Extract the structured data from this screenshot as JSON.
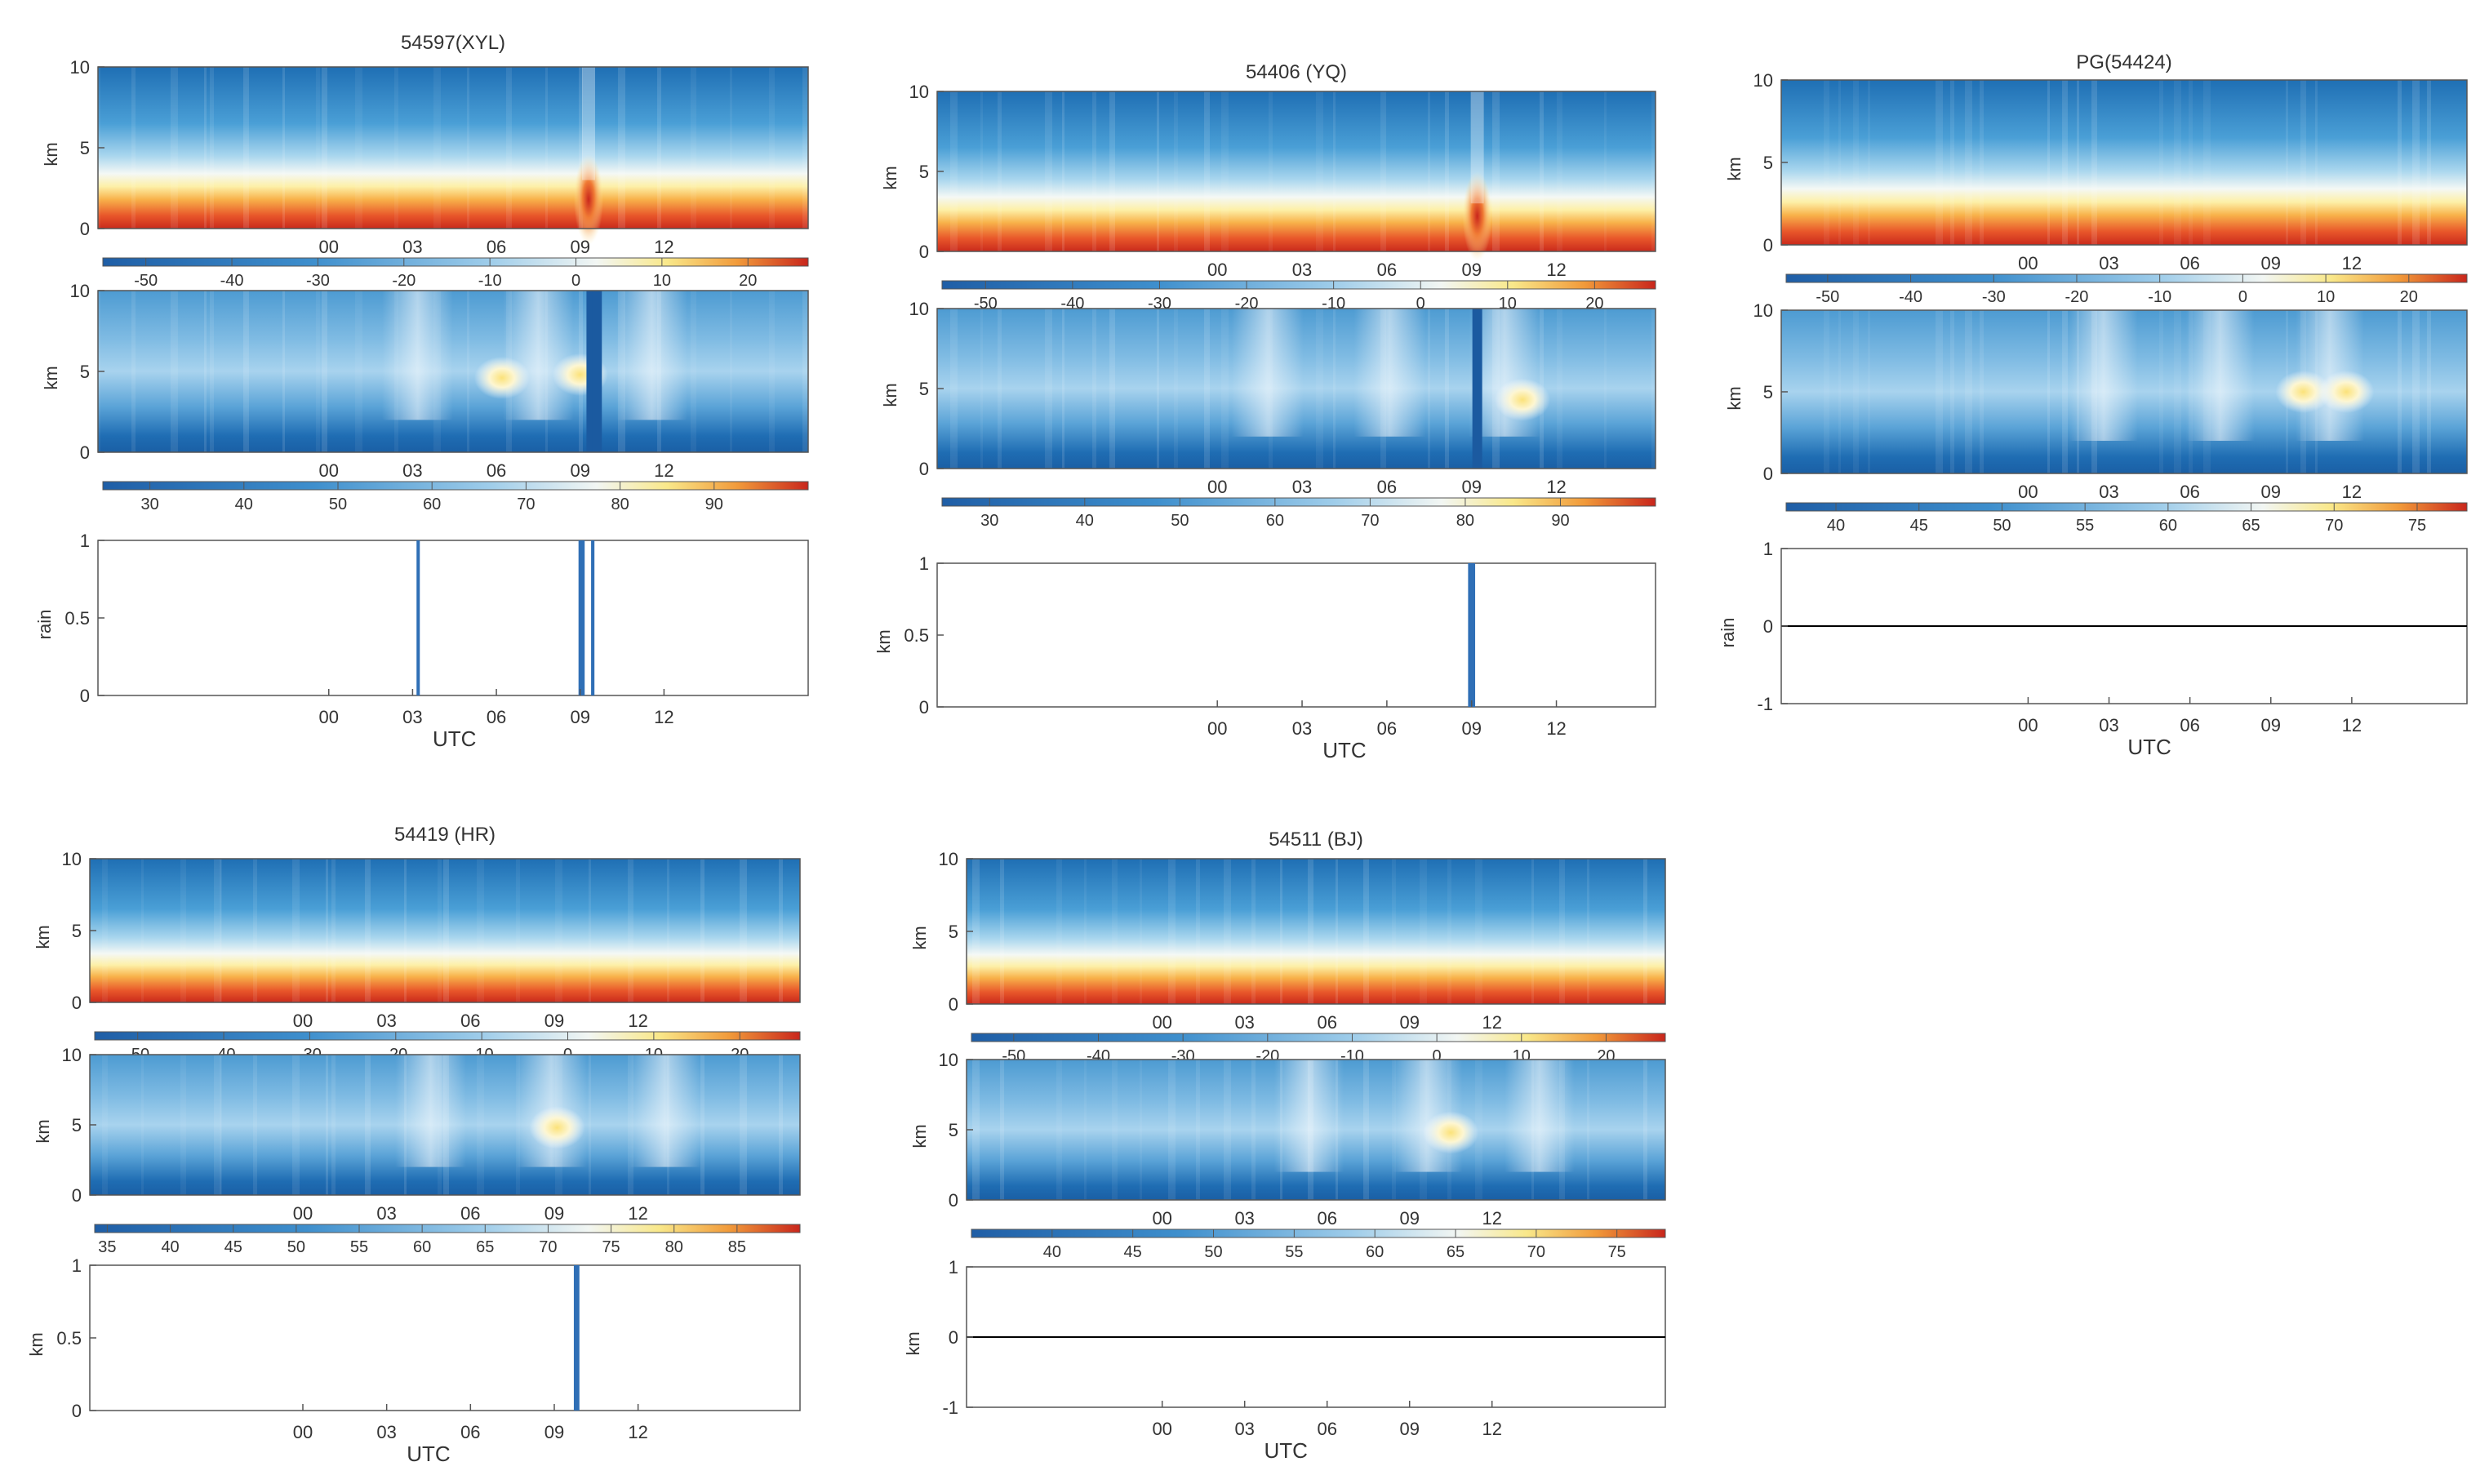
{
  "figure": {
    "colors": {
      "frame": "#555555",
      "rain_bar": "#2f6fb6",
      "zero_line": "#000000"
    }
  },
  "chart_data": [
    {
      "type": "heatmap",
      "station": "54597(XYL)",
      "title": "54597(XYL)",
      "panels": [
        {
          "kind": "temperature",
          "ylabel": "km",
          "ylim": [
            0,
            10
          ],
          "yticks": [
            "0",
            "5",
            "10"
          ],
          "xticks": [
            "00",
            "03",
            "06",
            "09",
            "12"
          ],
          "colorbar": {
            "min": -55,
            "max": 27,
            "ticks": [
              "-50",
              "-40",
              "-30",
              "-20",
              "-10",
              "0",
              "10",
              "20"
            ]
          },
          "features": [
            {
              "type": "plume",
              "x": 9.3,
              "y": 1.8,
              "value": 18
            }
          ]
        },
        {
          "kind": "humidity",
          "ylabel": "km",
          "ylim": [
            0,
            10
          ],
          "yticks": [
            "0",
            "5",
            "10"
          ],
          "xticks": [
            "00",
            "03",
            "06",
            "09",
            "12"
          ],
          "colorbar": {
            "min": 25,
            "max": 100,
            "ticks": [
              "30",
              "40",
              "50",
              "60",
              "70",
              "80",
              "90"
            ]
          },
          "features": [
            {
              "type": "blob",
              "x": 6.2,
              "y": 4.6,
              "value": 84
            },
            {
              "type": "blob",
              "x": 9.0,
              "y": 4.8,
              "value": 86
            }
          ],
          "dry_columns": [
            9.4,
            9.6
          ]
        },
        {
          "kind": "rain",
          "ylabel": "rain",
          "ylim": [
            0,
            1
          ],
          "yticks": [
            "0",
            "0.5",
            "1"
          ],
          "xticks": [
            "00",
            "03",
            "06",
            "09",
            "12"
          ],
          "xlabel": "UTC",
          "bars": [
            {
              "x": 3.2,
              "width": 0.08
            },
            {
              "x": 9.05,
              "width": 0.22
            },
            {
              "x": 9.45,
              "width": 0.12
            }
          ]
        }
      ]
    },
    {
      "type": "heatmap",
      "station": "54406(YQ)",
      "title": "54406 (YQ)",
      "panels": [
        {
          "kind": "temperature",
          "ylabel": "km",
          "ylim": [
            0,
            10
          ],
          "yticks": [
            "0",
            "5",
            "10"
          ],
          "xticks": [
            "00",
            "03",
            "06",
            "09",
            "12"
          ],
          "colorbar": {
            "min": -55,
            "max": 27,
            "ticks": [
              "-50",
              "-40",
              "-30",
              "-20",
              "-10",
              "0",
              "10",
              "20"
            ]
          },
          "features": [
            {
              "type": "plume",
              "x": 9.2,
              "y": 2.2,
              "value": 22
            }
          ]
        },
        {
          "kind": "humidity",
          "ylabel": "km",
          "ylim": [
            0,
            10
          ],
          "yticks": [
            "0",
            "5",
            "10"
          ],
          "xticks": [
            "00",
            "03",
            "06",
            "09",
            "12"
          ],
          "colorbar": {
            "min": 25,
            "max": 100,
            "ticks": [
              "30",
              "40",
              "50",
              "60",
              "70",
              "80",
              "90"
            ]
          },
          "features": [
            {
              "type": "blob",
              "x": 10.8,
              "y": 4.3,
              "value": 82
            }
          ],
          "dry_columns": [
            9.2
          ]
        },
        {
          "kind": "rain",
          "ylabel": "km",
          "ylim": [
            0,
            1
          ],
          "yticks": [
            "0",
            "0.5",
            "1"
          ],
          "xticks": [
            "00",
            "03",
            "06",
            "09",
            "12"
          ],
          "xlabel": "UTC",
          "bars": [
            {
              "x": 9.0,
              "width": 0.25
            }
          ]
        }
      ]
    },
    {
      "type": "heatmap",
      "station": "PG(54424)",
      "title": "PG(54424)",
      "panels": [
        {
          "kind": "temperature",
          "ylabel": "km",
          "ylim": [
            0,
            10
          ],
          "yticks": [
            "0",
            "5",
            "10"
          ],
          "xticks": [
            "00",
            "03",
            "06",
            "09",
            "12"
          ],
          "colorbar": {
            "min": -55,
            "max": 27,
            "ticks": [
              "-50",
              "-40",
              "-30",
              "-20",
              "-10",
              "0",
              "10",
              "20"
            ]
          },
          "features": []
        },
        {
          "kind": "humidity",
          "ylabel": "km",
          "ylim": [
            0,
            10
          ],
          "yticks": [
            "0",
            "5",
            "10"
          ],
          "xticks": [
            "00",
            "03",
            "06",
            "09",
            "12"
          ],
          "colorbar": {
            "min": 37,
            "max": 78,
            "ticks": [
              "40",
              "45",
              "50",
              "55",
              "60",
              "65",
              "70",
              "75"
            ]
          },
          "features": [
            {
              "type": "blob",
              "x": 10.2,
              "y": 5.0,
              "value": 72
            },
            {
              "type": "blob",
              "x": 11.8,
              "y": 5.0,
              "value": 70
            }
          ],
          "dry_columns": []
        },
        {
          "kind": "rain",
          "ylabel": "rain",
          "ylim": [
            -1,
            1
          ],
          "yticks": [
            "-1",
            "0",
            "1"
          ],
          "xticks": [
            "00",
            "03",
            "06",
            "09",
            "12"
          ],
          "xlabel": "UTC",
          "bars": [],
          "zero_line": true
        }
      ]
    },
    {
      "type": "heatmap",
      "station": "54419(HR)",
      "title": "54419 (HR)",
      "panels": [
        {
          "kind": "temperature",
          "ylabel": "km",
          "ylim": [
            0,
            10
          ],
          "yticks": [
            "0",
            "5",
            "10"
          ],
          "xticks": [
            "00",
            "03",
            "06",
            "09",
            "12"
          ],
          "colorbar": {
            "min": -55,
            "max": 27,
            "ticks": [
              "-50",
              "-40",
              "-30",
              "-20",
              "-10",
              "0",
              "10",
              "20"
            ]
          },
          "features": []
        },
        {
          "kind": "humidity",
          "ylabel": "km",
          "ylim": [
            0,
            10
          ],
          "yticks": [
            "0",
            "5",
            "10"
          ],
          "xticks": [
            "00",
            "03",
            "06",
            "09",
            "12"
          ],
          "colorbar": {
            "min": 34,
            "max": 90,
            "ticks": [
              "35",
              "40",
              "45",
              "50",
              "55",
              "60",
              "65",
              "70",
              "75",
              "80",
              "85"
            ]
          },
          "features": [
            {
              "type": "blob",
              "x": 9.1,
              "y": 4.8,
              "value": 78
            }
          ],
          "dry_columns": []
        },
        {
          "kind": "rain",
          "ylabel": "km",
          "ylim": [
            0,
            1
          ],
          "yticks": [
            "0",
            "0.5",
            "1"
          ],
          "xticks": [
            "00",
            "03",
            "06",
            "09",
            "12"
          ],
          "xlabel": "UTC",
          "bars": [
            {
              "x": 9.8,
              "width": 0.2
            }
          ]
        }
      ]
    },
    {
      "type": "heatmap",
      "station": "54511(BJ)",
      "title": "54511 (BJ)",
      "panels": [
        {
          "kind": "temperature",
          "ylabel": "km",
          "ylim": [
            0,
            10
          ],
          "yticks": [
            "0",
            "5",
            "10"
          ],
          "xticks": [
            "00",
            "03",
            "06",
            "09",
            "12"
          ],
          "colorbar": {
            "min": -55,
            "max": 27,
            "ticks": [
              "-50",
              "-40",
              "-30",
              "-20",
              "-10",
              "0",
              "10",
              "20"
            ]
          },
          "features": []
        },
        {
          "kind": "humidity",
          "ylabel": "km",
          "ylim": [
            0,
            10
          ],
          "yticks": [
            "0",
            "5",
            "10"
          ],
          "xticks": [
            "00",
            "03",
            "06",
            "09",
            "12"
          ],
          "colorbar": {
            "min": 35,
            "max": 78,
            "ticks": [
              "40",
              "45",
              "50",
              "55",
              "60",
              "65",
              "70",
              "75"
            ]
          },
          "features": [
            {
              "type": "blob",
              "x": 10.5,
              "y": 4.8,
              "value": 66
            }
          ],
          "dry_columns": []
        },
        {
          "kind": "rain",
          "ylabel": "km",
          "ylim": [
            -1,
            1
          ],
          "yticks": [
            "-1",
            "0",
            "1"
          ],
          "xticks": [
            "00",
            "03",
            "06",
            "09",
            "12"
          ],
          "xlabel": "UTC",
          "bars": [],
          "zero_line": true
        }
      ]
    }
  ]
}
